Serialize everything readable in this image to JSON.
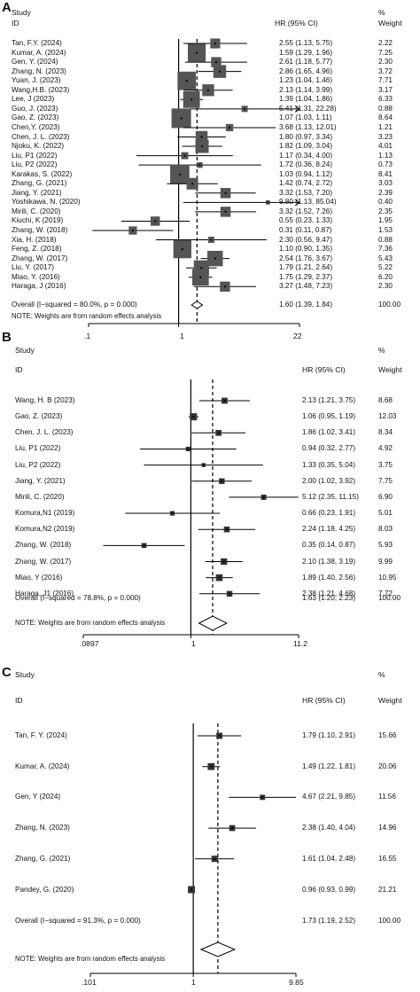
{
  "panels": [
    {
      "letter": "A",
      "header": {
        "study": "Study",
        "id": "ID",
        "hr": "HR (95% CI)",
        "pct": "%",
        "weight": "Weight"
      },
      "note": "NOTE: Weights are from random effects analysis",
      "axis_ticks": [
        ".1",
        "1",
        "22"
      ],
      "overall_label": "Overall  (I−squared = 80.0%, p = 0.000)",
      "overall_text": "1.60 (1.39, 1.84)",
      "overall_weight": "100.00"
    },
    {
      "letter": "B",
      "header": {
        "study": "Study",
        "id": "ID",
        "hr": "HR (95% CI)",
        "pct": "%",
        "weight": "Weight"
      },
      "note": "NOTE: Weights are from random effects analysis",
      "axis_ticks": [
        ".0897",
        "1",
        "11.2"
      ],
      "overall_label": "Overall  (I−squared = 78.8%, p = 0.000)",
      "overall_text": "1.63 (1.20, 2.23)",
      "overall_weight": "100.00"
    },
    {
      "letter": "C",
      "header": {
        "study": "Study",
        "id": "ID",
        "hr": "HR (95% CI)",
        "pct": "%",
        "weight": "Weight"
      },
      "note": "NOTE: Weights are from random effects analysis",
      "axis_ticks": [
        ".101",
        "1",
        "9.85"
      ],
      "overall_label": "Overall  (I−squared = 91.3%, p = 0.000)",
      "overall_text": "1.73 (1.19, 2.52)",
      "overall_weight": "100.00"
    }
  ],
  "chart_data": [
    {
      "type": "forest",
      "panel": "A",
      "xscale": "log",
      "xlim": [
        0.1,
        22
      ],
      "reference_line": 1,
      "overall": {
        "hr": 1.6,
        "lo": 1.39,
        "hi": 1.84,
        "weight": 100.0
      },
      "studies": [
        {
          "id": "Tan, F.Y. (2024)",
          "hr": 2.55,
          "lo": 1.13,
          "hi": 5.75,
          "weight": 2.22,
          "text": "2.55 (1.13, 5.75)",
          "wtext": "2.22"
        },
        {
          "id": "Kumar, A. (2024)",
          "hr": 1.59,
          "lo": 1.29,
          "hi": 1.96,
          "weight": 7.25,
          "text": "1.59 (1.29, 1.96)",
          "wtext": "7.25"
        },
        {
          "id": "Gen, Y. (2024)",
          "hr": 2.61,
          "lo": 1.18,
          "hi": 5.77,
          "weight": 2.3,
          "text": "2.61 (1.18, 5.77)",
          "wtext": "2.30"
        },
        {
          "id": "Zhang, N. (2023)",
          "hr": 2.86,
          "lo": 1.65,
          "hi": 4.96,
          "weight": 3.72,
          "text": "2.86 (1.65, 4.96)",
          "wtext": "3.72"
        },
        {
          "id": "Yuan, J. (2023)",
          "hr": 1.23,
          "lo": 1.04,
          "hi": 1.46,
          "weight": 7.71,
          "text": "1.23 (1.04, 1.46)",
          "wtext": "7.71"
        },
        {
          "id": "Wang,H.B. (2023)",
          "hr": 2.13,
          "lo": 1.14,
          "hi": 3.99,
          "weight": 3.17,
          "text": "2.13 (1.14, 3.99)",
          "wtext": "3.17"
        },
        {
          "id": "Lee, J (2023)",
          "hr": 1.39,
          "lo": 1.04,
          "hi": 1.86,
          "weight": 6.33,
          "text": "1.39 (1.04, 1.86)",
          "wtext": "6.33"
        },
        {
          "id": "Guo, J. (2023)",
          "hr": 5.41,
          "lo": 1.31,
          "hi": 22.28,
          "weight": 0.88,
          "text": "5.41 (1.31, 22.28)",
          "wtext": "0.88"
        },
        {
          "id": "Gao, Z. (2023)",
          "hr": 1.07,
          "lo": 1.03,
          "hi": 1.11,
          "weight": 8.64,
          "text": "1.07 (1.03, 1.11)",
          "wtext": "8.64"
        },
        {
          "id": "Chen,Y. (2023)",
          "hr": 3.68,
          "lo": 1.13,
          "hi": 12.01,
          "weight": 1.21,
          "text": "3.68 (1.13, 12.01)",
          "wtext": "1.21"
        },
        {
          "id": "Chen, J. L. (2023)",
          "hr": 1.8,
          "lo": 0.97,
          "hi": 3.34,
          "weight": 3.23,
          "text": "1.80 (0.97, 3.34)",
          "wtext": "3.23"
        },
        {
          "id": "Njoku, K. (2022)",
          "hr": 1.82,
          "lo": 1.09,
          "hi": 3.04,
          "weight": 4.01,
          "text": "1.82 (1.09, 3.04)",
          "wtext": "4.01"
        },
        {
          "id": "Liu, P1 (2022)",
          "hr": 1.17,
          "lo": 0.34,
          "hi": 4.0,
          "weight": 1.13,
          "text": "1.17 (0.34, 4.00)",
          "wtext": "1.13"
        },
        {
          "id": "Liu, P2 (2022)",
          "hr": 1.72,
          "lo": 0.36,
          "hi": 8.24,
          "weight": 0.73,
          "text": "1.72 (0.36, 8.24)",
          "wtext": "0.73"
        },
        {
          "id": "Karakas, S. (2022)",
          "hr": 1.03,
          "lo": 0.94,
          "hi": 1.12,
          "weight": 8.41,
          "text": "1.03 (0.94, 1.12)",
          "wtext": "8.41"
        },
        {
          "id": "Zhang, G. (2021)",
          "hr": 1.42,
          "lo": 0.74,
          "hi": 2.72,
          "weight": 3.03,
          "text": "1.42 (0.74, 2.72)",
          "wtext": "3.03"
        },
        {
          "id": "Jiang, Y. (2021)",
          "hr": 3.32,
          "lo": 1.53,
          "hi": 7.2,
          "weight": 2.39,
          "text": "3.32 (1.53, 7.20)",
          "wtext": "2.39"
        },
        {
          "id": "Yoshikawa, N. (2020)",
          "hr": 9.8,
          "lo": 1.13,
          "hi": 85.04,
          "weight": 0.4,
          "text": "9.80 (1.13, 85.04)",
          "wtext": "0.40"
        },
        {
          "id": "Mirili, C. (2020)",
          "hr": 3.32,
          "lo": 1.52,
          "hi": 7.26,
          "weight": 2.35,
          "text": "3.32 (1.52, 7.26)",
          "wtext": "2.35"
        },
        {
          "id": "Kiuchi, K (2019)",
          "hr": 0.55,
          "lo": 0.23,
          "hi": 1.33,
          "weight": 1.95,
          "text": "0.55 (0.23, 1.33)",
          "wtext": "1.95"
        },
        {
          "id": "Zhang, W. (2018)",
          "hr": 0.31,
          "lo": 0.11,
          "hi": 0.87,
          "weight": 1.53,
          "text": "0.31 (0.11, 0.87)",
          "wtext": "1.53"
        },
        {
          "id": "Xia, H. (2018)",
          "hr": 2.3,
          "lo": 0.56,
          "hi": 9.47,
          "weight": 0.88,
          "text": "2.30 (0.56, 9.47)",
          "wtext": "0.88"
        },
        {
          "id": "Feng, Z. (2018)",
          "hr": 1.1,
          "lo": 0.9,
          "hi": 1.35,
          "weight": 7.36,
          "text": "1.10 (0.90, 1.35)",
          "wtext": "7.36"
        },
        {
          "id": "Zhang, W. (2017)",
          "hr": 2.54,
          "lo": 1.76,
          "hi": 3.67,
          "weight": 5.43,
          "text": "2.54 (1.76, 3.67)",
          "wtext": "5.43"
        },
        {
          "id": "Liu, Y. (2017)",
          "hr": 1.79,
          "lo": 1.21,
          "hi": 2.64,
          "weight": 5.22,
          "text": "1.79 (1.21, 2.64)",
          "wtext": "5.22"
        },
        {
          "id": "Miao, Y. (2016)",
          "hr": 1.75,
          "lo": 1.29,
          "hi": 2.37,
          "weight": 6.2,
          "text": "1.75 (1.29, 2.37)",
          "wtext": "6.20"
        },
        {
          "id": "Haraga, J (2016)",
          "hr": 3.27,
          "lo": 1.48,
          "hi": 7.23,
          "weight": 2.3,
          "text": "3.27 (1.48, 7.23)",
          "wtext": "2.30"
        }
      ]
    },
    {
      "type": "forest",
      "panel": "B",
      "xscale": "log",
      "xlim": [
        0.0897,
        11.2
      ],
      "reference_line": 1,
      "overall": {
        "hr": 1.63,
        "lo": 1.2,
        "hi": 2.23,
        "weight": 100.0
      },
      "studies": [
        {
          "id": "Wang, H. B (2023)",
          "hr": 2.13,
          "lo": 1.21,
          "hi": 3.75,
          "weight": 8.68,
          "text": "2.13 (1.21, 3.75)",
          "wtext": "8.68"
        },
        {
          "id": "Gao, Z. (2023)",
          "hr": 1.06,
          "lo": 0.95,
          "hi": 1.19,
          "weight": 12.03,
          "text": "1.06 (0.95, 1.19)",
          "wtext": "12.03"
        },
        {
          "id": "Chen, J. L. (2023)",
          "hr": 1.86,
          "lo": 1.02,
          "hi": 3.41,
          "weight": 8.34,
          "text": "1.86 (1.02, 3.41)",
          "wtext": "8.34"
        },
        {
          "id": "Liu, P1 (2022)",
          "hr": 0.94,
          "lo": 0.32,
          "hi": 2.77,
          "weight": 4.92,
          "text": "0.94 (0.32, 2.77)",
          "wtext": "4.92"
        },
        {
          "id": "Liu, P2 (2022)",
          "hr": 1.33,
          "lo": 0.35,
          "hi": 5.04,
          "weight": 3.75,
          "text": "1.33 (0.35, 5.04)",
          "wtext": "3.75"
        },
        {
          "id": "Jiang, Y. (2021)",
          "hr": 2.0,
          "lo": 1.02,
          "hi": 3.92,
          "weight": 7.75,
          "text": "2.00 (1.02, 3.92)",
          "wtext": "7.75"
        },
        {
          "id": "Mirili, C. (2020)",
          "hr": 5.12,
          "lo": 2.35,
          "hi": 11.15,
          "weight": 6.9,
          "text": "5.12 (2.35, 11.15)",
          "wtext": "6.90"
        },
        {
          "id": "Komura,N1 (2019)",
          "hr": 0.66,
          "lo": 0.23,
          "hi": 1.91,
          "weight": 5.01,
          "text": "0.66 (0.23, 1.91)",
          "wtext": "5.01"
        },
        {
          "id": "Komura,N2 (2019)",
          "hr": 2.24,
          "lo": 1.18,
          "hi": 4.25,
          "weight": 8.03,
          "text": "2.24 (1.18, 4.25)",
          "wtext": "8.03"
        },
        {
          "id": "Zhang, W. (2018)",
          "hr": 0.35,
          "lo": 0.14,
          "hi": 0.87,
          "weight": 5.93,
          "text": "0.35 (0.14, 0.87)",
          "wtext": "5.93"
        },
        {
          "id": "Zhang, W. (2017)",
          "hr": 2.1,
          "lo": 1.38,
          "hi": 3.19,
          "weight": 9.99,
          "text": "2.10 (1.38, 3.19)",
          "wtext": "9.99"
        },
        {
          "id": "Miao, Y (2016)",
          "hr": 1.89,
          "lo": 1.4,
          "hi": 2.56,
          "weight": 10.95,
          "text": "1.89 (1.40, 2.56)",
          "wtext": "10.95"
        },
        {
          "id": "Haraga, J1 (2016)",
          "hr": 2.38,
          "lo": 1.21,
          "hi": 4.68,
          "weight": 7.72,
          "text": "2.38 (1.21, 4.68)",
          "wtext": "7.72"
        }
      ]
    },
    {
      "type": "forest",
      "panel": "C",
      "xscale": "log",
      "xlim": [
        0.101,
        9.85
      ],
      "reference_line": 1,
      "overall": {
        "hr": 1.73,
        "lo": 1.19,
        "hi": 2.52,
        "weight": 100.0
      },
      "studies": [
        {
          "id": "Tan, F. Y. (2024)",
          "hr": 1.79,
          "lo": 1.1,
          "hi": 2.91,
          "weight": 15.66,
          "text": "1.79 (1.10, 2.91)",
          "wtext": "15.66"
        },
        {
          "id": "Kumar, A. (2024)",
          "hr": 1.49,
          "lo": 1.22,
          "hi": 1.81,
          "weight": 20.06,
          "text": "1.49 (1.22, 1.81)",
          "wtext": "20.06"
        },
        {
          "id": "Gen, Y (2024)",
          "hr": 4.67,
          "lo": 2.21,
          "hi": 9.85,
          "weight": 11.56,
          "text": "4.67 (2.21, 9.85)",
          "wtext": "11.56"
        },
        {
          "id": "Zhang, N. (2023)",
          "hr": 2.38,
          "lo": 1.4,
          "hi": 4.04,
          "weight": 14.96,
          "text": "2.38 (1.40, 4.04)",
          "wtext": "14.96"
        },
        {
          "id": "Zhang, G. (2021)",
          "hr": 1.61,
          "lo": 1.04,
          "hi": 2.48,
          "weight": 16.55,
          "text": "1.61 (1.04, 2.48)",
          "wtext": "16.55"
        },
        {
          "id": "Pandey, G. (2020)",
          "hr": 0.96,
          "lo": 0.93,
          "hi": 0.99,
          "weight": 21.21,
          "text": "0.96 (0.93, 0.99)",
          "wtext": "21.21"
        }
      ]
    }
  ]
}
